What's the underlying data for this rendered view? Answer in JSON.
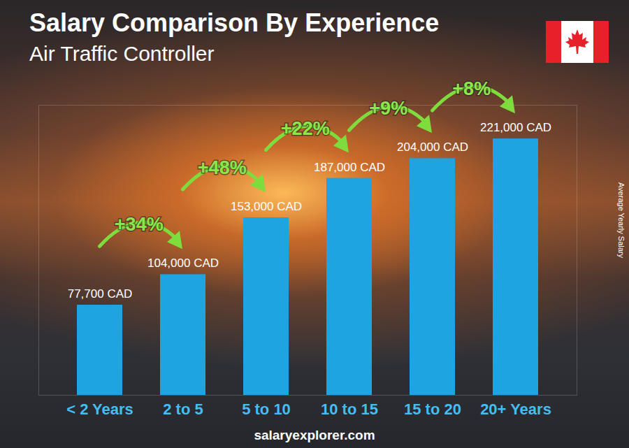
{
  "chart_data": {
    "type": "bar",
    "title": "Salary Comparison By Experience",
    "subtitle": "Air Traffic Controller",
    "ylabel": "Average Yearly Salary",
    "categories": [
      "< 2 Years",
      "2 to 5",
      "5 to 10",
      "10 to 15",
      "15 to 20",
      "20+ Years"
    ],
    "values": [
      77700,
      104000,
      153000,
      187000,
      204000,
      221000
    ],
    "value_labels": [
      "77,700 CAD",
      "104,000 CAD",
      "153,000 CAD",
      "187,000 CAD",
      "204,000 CAD",
      "221,000 CAD"
    ],
    "annotations": [
      "+34%",
      "+48%",
      "+22%",
      "+9%",
      "+8%"
    ],
    "source": "salaryexplorer.com",
    "color": "#1ea4e0",
    "ylim": [
      0,
      250000
    ],
    "yticks": [],
    "grid": false,
    "data_labels": true,
    "tick_labels": "x"
  }
}
